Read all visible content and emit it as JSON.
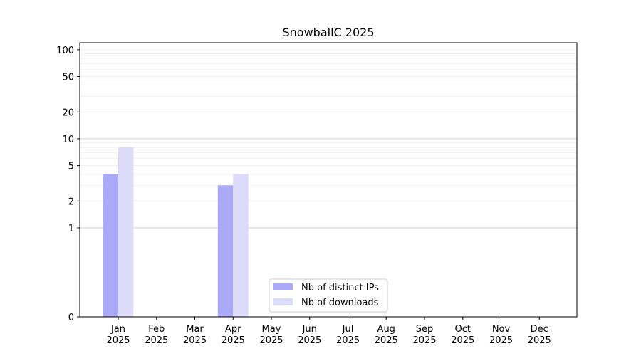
{
  "chart_data": {
    "type": "bar",
    "title": "SnowballC 2025",
    "xlabel": "",
    "ylabel": "",
    "y_scale": "symlog",
    "ylim": [
      0,
      120
    ],
    "y_ticks": [
      0,
      1,
      2,
      5,
      10,
      20,
      50,
      100
    ],
    "grid": true,
    "legend_position": "lower center",
    "categories": [
      "Jan\n2025",
      "Feb\n2025",
      "Mar\n2025",
      "Apr\n2025",
      "May\n2025",
      "Jun\n2025",
      "Jul\n2025",
      "Aug\n2025",
      "Sep\n2025",
      "Oct\n2025",
      "Nov\n2025",
      "Dec\n2025"
    ],
    "series": [
      {
        "name": "Nb of distinct IPs",
        "color": "#aaaaf8",
        "values": [
          4,
          0,
          0,
          3,
          0,
          0,
          0,
          0,
          0,
          0,
          0,
          0
        ]
      },
      {
        "name": "Nb of downloads",
        "color": "#dcdcfa",
        "values": [
          8,
          0,
          0,
          4,
          0,
          0,
          0,
          0,
          0,
          0,
          0,
          0
        ]
      }
    ]
  }
}
